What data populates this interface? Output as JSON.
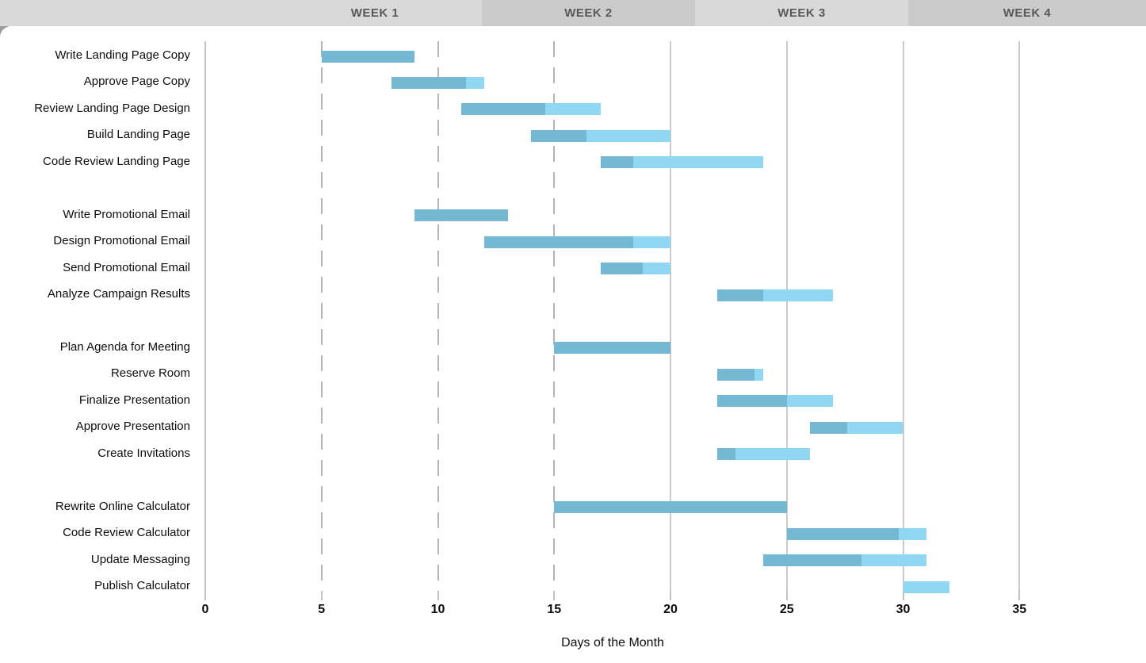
{
  "header": {
    "weeks": [
      {
        "label": "WEEK 1"
      },
      {
        "label": "WEEK 2"
      },
      {
        "label": "WEEK 3"
      },
      {
        "label": "WEEK 4"
      }
    ],
    "light_band_color": "#d9d9d9",
    "dark_band_color": "#cbcbcb",
    "text_color": "#595959"
  },
  "chart_data": {
    "type": "gantt",
    "xlabel": "Days of the Month",
    "x_ticks": [
      0,
      5,
      10,
      15,
      20,
      25,
      30,
      35
    ],
    "x_range": [
      0,
      40
    ],
    "dashed_gridlines_at": [
      5,
      10,
      15
    ],
    "solid_gridlines_at": [
      20,
      25,
      30,
      35
    ],
    "week_headers": [
      "WEEK 1",
      "WEEK 2",
      "WEEK 3",
      "WEEK 4"
    ],
    "bar_colors": {
      "complete": "#74b8d4",
      "remaining": "#8fd7f2"
    },
    "gridline_colors": {
      "dashed": "#b4b4b4",
      "solid": "#cbcbcb"
    },
    "sections": [
      {
        "tasks": [
          {
            "name": "Write Landing Page Copy",
            "start_day": 5,
            "end_day": 9,
            "percent_complete": 100
          },
          {
            "name": "Approve Page Copy",
            "start_day": 8,
            "end_day": 12,
            "percent_complete": 80
          },
          {
            "name": "Review Landing Page Design",
            "start_day": 11,
            "end_day": 17,
            "percent_complete": 60
          },
          {
            "name": "Build Landing Page",
            "start_day": 14,
            "end_day": 20,
            "percent_complete": 40
          },
          {
            "name": "Code Review Landing Page",
            "start_day": 17,
            "end_day": 24,
            "percent_complete": 20
          }
        ]
      },
      {
        "tasks": [
          {
            "name": "Write Promotional Email",
            "start_day": 9,
            "end_day": 13,
            "percent_complete": 100
          },
          {
            "name": "Design Promotional Email",
            "start_day": 12,
            "end_day": 20,
            "percent_complete": 80
          },
          {
            "name": "Send Promotional Email",
            "start_day": 17,
            "end_day": 20,
            "percent_complete": 60
          },
          {
            "name": "Analyze Campaign Results",
            "start_day": 22,
            "end_day": 27,
            "percent_complete": 40
          }
        ]
      },
      {
        "tasks": [
          {
            "name": "Plan Agenda for Meeting",
            "start_day": 15,
            "end_day": 20,
            "percent_complete": 100
          },
          {
            "name": "Reserve Room",
            "start_day": 22,
            "end_day": 24,
            "percent_complete": 80
          },
          {
            "name": "Finalize Presentation",
            "start_day": 22,
            "end_day": 27,
            "percent_complete": 60
          },
          {
            "name": "Approve Presentation",
            "start_day": 26,
            "end_day": 30,
            "percent_complete": 40
          },
          {
            "name": "Create Invitations",
            "start_day": 22,
            "end_day": 26,
            "percent_complete": 20
          }
        ]
      },
      {
        "tasks": [
          {
            "name": "Rewrite Online Calculator",
            "start_day": 15,
            "end_day": 25,
            "percent_complete": 100
          },
          {
            "name": "Code Review Calculator",
            "start_day": 25,
            "end_day": 31,
            "percent_complete": 80
          },
          {
            "name": "Update Messaging",
            "start_day": 24,
            "end_day": 31,
            "percent_complete": 60
          },
          {
            "name": "Publish Calculator",
            "start_day": 30,
            "end_day": 32,
            "percent_complete": 0
          }
        ]
      }
    ]
  }
}
